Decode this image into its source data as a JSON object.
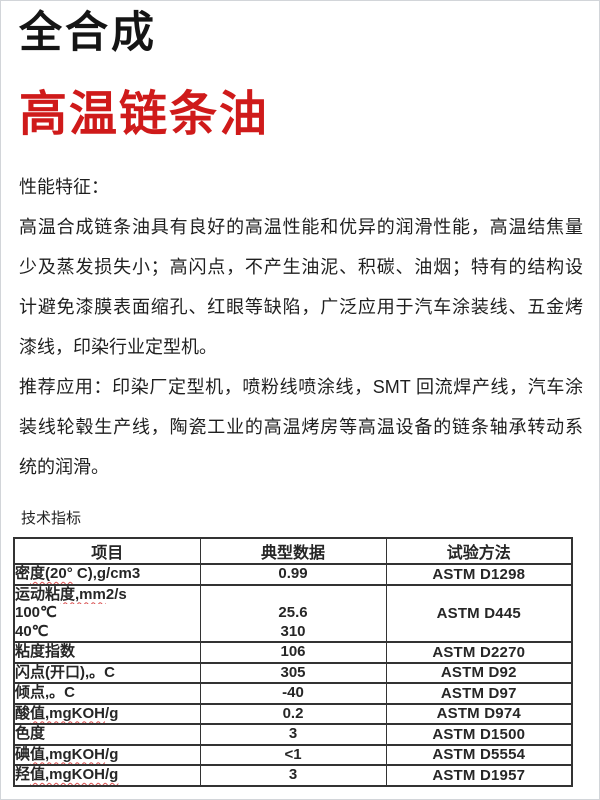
{
  "page": {
    "title_line1": "全合成",
    "title_line2": "高温链条油",
    "performance_heading": "性能特征：",
    "performance_lines": [
      "高温合成链条油具有良好的高温性能和优异的润滑性能，高温结焦量",
      "少及蒸发损失小；高闪点，不产生油泥、积碳、油烟；特有的结构设",
      "计避免漆膜表面缩孔、红眼等缺陷，广泛应用于汽车涂装线、五金烤",
      "漆线，印染行业定型机。"
    ],
    "applications_lines": [
      "推荐应用：印染厂定型机，喷粉线喷涂线，SMT 回流焊产线，汽车涂",
      "装线轮毂生产线，陶瓷工业的高温烤房等高温设备的链条轴承转动系",
      "统的润滑。"
    ],
    "table_label": "技术指标",
    "colors": {
      "accent_red": "#cf1a1a",
      "text": "#1f1f1f",
      "table_border": "#333333",
      "spellcheck_red": "#d95050"
    }
  },
  "table": {
    "headers": [
      "项目",
      "典型数据",
      "试验方法"
    ],
    "rows": [
      {
        "item_lines": [
          [
            "密",
            "度(20°",
            " C),g/cm3"
          ]
        ],
        "value_lines": [
          "0.99"
        ],
        "method": "ASTM D1298"
      },
      {
        "item_lines": [
          [
            "运动粘",
            "度,mm",
            "2/s"
          ],
          [
            "100℃",
            "",
            ""
          ],
          [
            "40℃",
            "",
            ""
          ]
        ],
        "value_lines": [
          "",
          "25.6",
          "310"
        ],
        "method": "ASTM D445"
      },
      {
        "item_lines": [
          [
            "粘度指数",
            "",
            ""
          ]
        ],
        "value_lines": [
          "106"
        ],
        "method": "ASTM D2270"
      },
      {
        "item_lines": [
          [
            "闪点(开口),。C",
            "",
            ""
          ]
        ],
        "value_lines": [
          "305"
        ],
        "method": "ASTM D92"
      },
      {
        "item_lines": [
          [
            "倾点,。C",
            "",
            ""
          ]
        ],
        "value_lines": [
          "-40"
        ],
        "method": "ASTM D97"
      },
      {
        "item_lines": [
          [
            "酸",
            "值,mgKOH",
            "/g"
          ]
        ],
        "value_lines": [
          "0.2"
        ],
        "method": "ASTM D974"
      },
      {
        "item_lines": [
          [
            "色度",
            "",
            ""
          ]
        ],
        "value_lines": [
          "3"
        ],
        "method": "ASTM D1500"
      },
      {
        "item_lines": [
          [
            "碘",
            "值,mgKOH",
            "/g"
          ]
        ],
        "value_lines": [
          "<1"
        ],
        "method": "ASTM D5554"
      },
      {
        "item_lines": [
          [
            "羟",
            "值,mgKOH/g",
            ""
          ]
        ],
        "value_lines": [
          "3"
        ],
        "method": "ASTM D1957"
      }
    ]
  }
}
